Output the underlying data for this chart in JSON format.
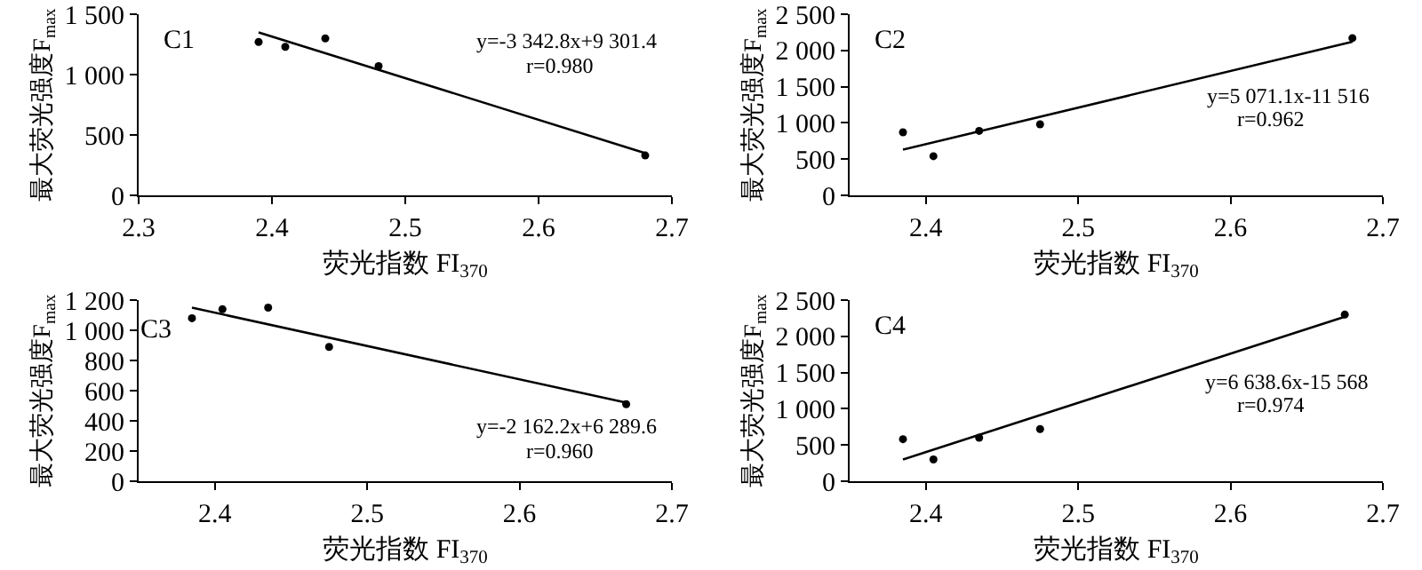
{
  "chart_data": [
    {
      "type": "scatter",
      "title": "C1",
      "xlabel": "荧光指数 FI$_{370}$",
      "ylabel": "最大荧光强度F$_{max}$",
      "annotations": [
        "y=-3 342.8x+9 301.4",
        "r=0.980"
      ],
      "xlim": [
        2.3,
        2.7
      ],
      "xticks": [
        2.3,
        2.4,
        2.5,
        2.6,
        2.7
      ],
      "ylim": [
        0,
        1500
      ],
      "yticks": [
        0,
        500,
        {
          "value": 1000,
          "label": "1 000"
        },
        {
          "value": 1500,
          "label": "1 500"
        }
      ],
      "grid": false,
      "series": [
        {
          "color": "#000000",
          "marker": "circle",
          "x": [
            2.39,
            2.41,
            2.44,
            2.48,
            2.68
          ],
          "values": [
            1270,
            1230,
            1300,
            1070,
            330
          ]
        },
        {
          "type": "line",
          "marker": "none",
          "color": "#000000",
          "x": [
            2.39,
            2.68
          ],
          "values": [
            1350,
            350
          ]
        }
      ]
    },
    {
      "type": "scatter",
      "title": "C2",
      "xlabel": "荧光指数 FI$_{370}$",
      "ylabel": "最大荧光强度F$_{max}$",
      "annotations": [
        "y=5 071.1x-11 516",
        "r=0.962"
      ],
      "xlim": [
        2.35,
        2.7
      ],
      "xticks": [
        2.4,
        2.5,
        2.6,
        2.7
      ],
      "ylim": [
        0,
        2500
      ],
      "yticks": [
        0,
        500,
        {
          "value": 1000,
          "label": "1 000"
        },
        {
          "value": 1500,
          "label": "1 500"
        },
        {
          "value": 2000,
          "label": "2 000"
        },
        {
          "value": 2500,
          "label": "2 500"
        }
      ],
      "grid": false,
      "series": [
        {
          "color": "#000000",
          "marker": "circle",
          "x": [
            2.385,
            2.405,
            2.435,
            2.475,
            2.68
          ],
          "values": [
            870,
            540,
            890,
            980,
            2170
          ]
        },
        {
          "type": "line",
          "marker": "none",
          "color": "#000000",
          "x": [
            2.385,
            2.68
          ],
          "values": [
            630,
            2120
          ]
        }
      ]
    },
    {
      "type": "scatter",
      "title": "C3",
      "xlabel": "荧光指数 FI$_{370}$",
      "ylabel": "最大荧光强度F$_{max}$",
      "annotations": [
        "y=-2 162.2x+6 289.6",
        "r=0.960"
      ],
      "xlim": [
        2.35,
        2.7
      ],
      "xticks": [
        2.4,
        2.5,
        2.6,
        2.7
      ],
      "ylim": [
        0,
        1200
      ],
      "yticks": [
        0,
        200,
        400,
        600,
        800,
        {
          "value": 1000,
          "label": "1 000"
        },
        {
          "value": 1200,
          "label": "1 200"
        }
      ],
      "grid": false,
      "series": [
        {
          "color": "#000000",
          "marker": "circle",
          "x": [
            2.385,
            2.405,
            2.435,
            2.475,
            2.67
          ],
          "values": [
            1080,
            1140,
            1150,
            890,
            510
          ]
        },
        {
          "type": "line",
          "marker": "none",
          "color": "#000000",
          "x": [
            2.385,
            2.67
          ],
          "values": [
            1150,
            520
          ]
        }
      ]
    },
    {
      "type": "scatter",
      "title": "C4",
      "xlabel": "荧光指数 FI$_{370}$",
      "ylabel": "最大荧光强度F$_{max}$",
      "annotations": [
        "y=6 638.6x-15 568",
        "r=0.974"
      ],
      "xlim": [
        2.35,
        2.7
      ],
      "xticks": [
        2.4,
        2.5,
        2.6,
        2.7
      ],
      "ylim": [
        0,
        2500
      ],
      "yticks": [
        0,
        500,
        {
          "value": 1000,
          "label": "1 000"
        },
        {
          "value": 1500,
          "label": "1 500"
        },
        {
          "value": 2000,
          "label": "2 000"
        },
        {
          "value": 2500,
          "label": "2 500"
        }
      ],
      "grid": false,
      "series": [
        {
          "color": "#000000",
          "marker": "circle",
          "x": [
            2.385,
            2.405,
            2.435,
            2.475,
            2.675
          ],
          "values": [
            580,
            300,
            600,
            720,
            2300
          ]
        },
        {
          "type": "line",
          "marker": "none",
          "color": "#000000",
          "x": [
            2.385,
            2.675
          ],
          "values": [
            300,
            2270
          ]
        }
      ]
    }
  ]
}
